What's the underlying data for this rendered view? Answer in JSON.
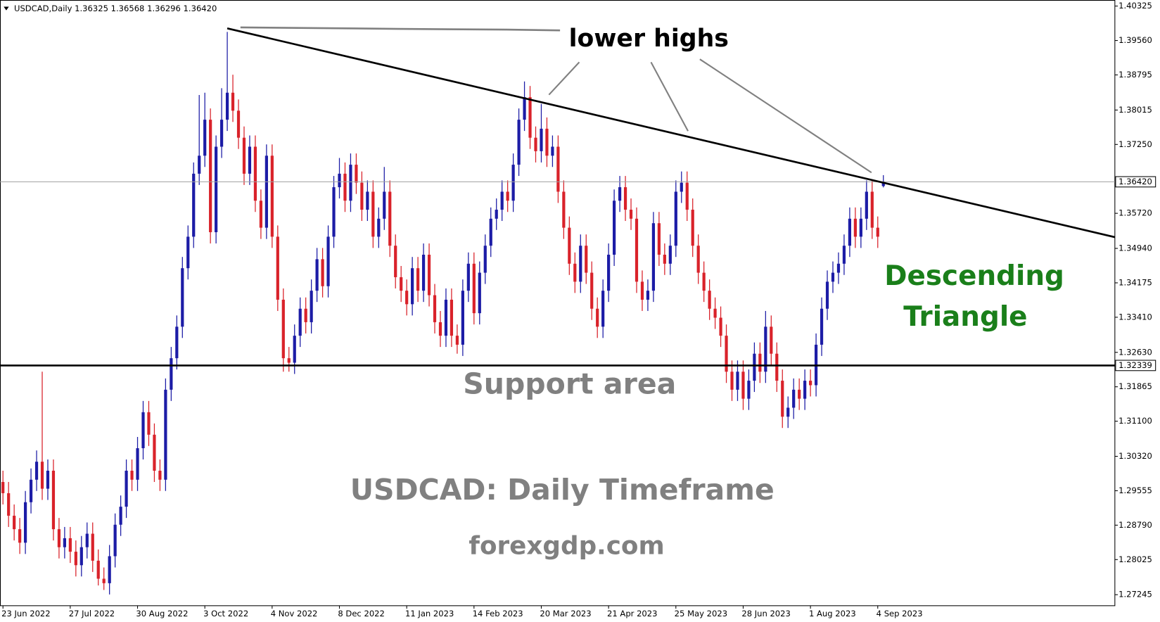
{
  "chart_data": {
    "type": "candlestick",
    "header": "USDCAD,Daily  1.36325 1.36568 1.36296 1.36420",
    "title": "USDCAD: Daily Timeframe",
    "source": "forexgdp.com",
    "annotations": {
      "lower_highs": "lower highs",
      "pattern": [
        "Descending",
        "Triangle"
      ],
      "support": "Support area"
    },
    "up_color": "#1c1ca6",
    "down_color": "#d9222a",
    "pattern_color": "#1a7f1a",
    "annotation_color": "#808080",
    "ylim": [
      1.27,
      1.4046
    ],
    "yticks": [
      1.40325,
      {
        "value": 1.3956,
        "label": "1.39560"
      },
      1.38795,
      1.38015,
      {
        "value": 1.3725,
        "label": "1.37250"
      },
      {
        "value": 1.3572,
        "label": "1.35720"
      },
      {
        "value": 1.3494,
        "label": "1.34940"
      },
      1.34175,
      {
        "value": 1.3341,
        "label": "1.33410"
      },
      {
        "value": 1.3263,
        "label": "1.32630"
      },
      1.31865,
      {
        "value": 1.311,
        "label": "1.31100"
      },
      {
        "value": 1.3032,
        "label": "1.30320"
      },
      1.29555,
      {
        "value": 1.2879,
        "label": "1.28790"
      },
      1.28025,
      1.27245
    ],
    "last_price": {
      "value": 1.3642,
      "label": "1.36420"
    },
    "support_level": 1.32339,
    "trendline": [
      1.3983,
      1.3519
    ],
    "categories": [
      "23 Jun 2022",
      null,
      null,
      null,
      null,
      null,
      null,
      null,
      null,
      null,
      null,
      null,
      "27 Jul 2022",
      null,
      null,
      null,
      null,
      null,
      null,
      null,
      null,
      null,
      null,
      null,
      "30 Aug 2022",
      null,
      null,
      null,
      null,
      null,
      null,
      null,
      null,
      null,
      null,
      null,
      "3 Oct 2022",
      null,
      null,
      null,
      null,
      null,
      null,
      null,
      null,
      null,
      null,
      null,
      "4 Nov 2022",
      null,
      null,
      null,
      null,
      null,
      null,
      null,
      null,
      null,
      null,
      null,
      "8 Dec 2022",
      null,
      null,
      null,
      null,
      null,
      null,
      null,
      null,
      null,
      null,
      null,
      "11 Jan 2023",
      null,
      null,
      null,
      null,
      null,
      null,
      null,
      null,
      null,
      null,
      null,
      "14 Feb 2023",
      null,
      null,
      null,
      null,
      null,
      null,
      null,
      null,
      null,
      null,
      null,
      "20 Mar 2023",
      null,
      null,
      null,
      null,
      null,
      null,
      null,
      null,
      null,
      null,
      null,
      "21 Apr 2023",
      null,
      null,
      null,
      null,
      null,
      null,
      null,
      null,
      null,
      null,
      null,
      "25 May 2023",
      null,
      null,
      null,
      null,
      null,
      null,
      null,
      null,
      null,
      null,
      null,
      "28 Jun 2023",
      null,
      null,
      null,
      null,
      null,
      null,
      null,
      null,
      null,
      null,
      null,
      "1 Aug 2023",
      null,
      null,
      null,
      null,
      null,
      null,
      null,
      null,
      null,
      null,
      null,
      "4 Sep 2023",
      null
    ],
    "candles": [
      [
        1.2975,
        1.3,
        1.2925,
        1.295
      ],
      [
        1.295,
        1.2975,
        1.2875,
        1.29
      ],
      [
        1.29,
        1.2925,
        1.2845,
        1.287
      ],
      [
        1.287,
        1.2895,
        1.2815,
        1.284
      ],
      [
        1.284,
        1.2955,
        1.2815,
        1.293
      ],
      [
        1.293,
        1.3005,
        1.2905,
        1.298
      ],
      [
        1.298,
        1.3045,
        1.2955,
        1.302
      ],
      [
        1.302,
        1.322,
        1.2935,
        1.296
      ],
      [
        1.296,
        1.3025,
        1.2935,
        1.3
      ],
      [
        1.3,
        1.3025,
        1.2845,
        1.287
      ],
      [
        1.287,
        1.2895,
        1.2805,
        1.283
      ],
      [
        1.283,
        1.2875,
        1.2805,
        1.285
      ],
      [
        1.285,
        1.2875,
        1.2795,
        1.282
      ],
      [
        1.282,
        1.2845,
        1.2765,
        1.279
      ],
      [
        1.279,
        1.2855,
        1.2765,
        1.283
      ],
      [
        1.283,
        1.2885,
        1.2805,
        1.286
      ],
      [
        1.286,
        1.2885,
        1.2775,
        1.28
      ],
      [
        1.28,
        1.2825,
        1.2745,
        1.276
      ],
      [
        1.276,
        1.2785,
        1.2735,
        1.275
      ],
      [
        1.275,
        1.2835,
        1.2725,
        1.281
      ],
      [
        1.281,
        1.2905,
        1.2785,
        1.288
      ],
      [
        1.288,
        1.2945,
        1.2855,
        1.292
      ],
      [
        1.292,
        1.3025,
        1.2895,
        1.3
      ],
      [
        1.3,
        1.3025,
        1.2955,
        1.298
      ],
      [
        1.298,
        1.3075,
        1.2955,
        1.305
      ],
      [
        1.305,
        1.3155,
        1.3025,
        1.313
      ],
      [
        1.313,
        1.3155,
        1.3055,
        1.308
      ],
      [
        1.308,
        1.3105,
        1.2975,
        1.3
      ],
      [
        1.3,
        1.3025,
        1.2955,
        1.298
      ],
      [
        1.298,
        1.3205,
        1.2955,
        1.318
      ],
      [
        1.318,
        1.3275,
        1.3155,
        1.325
      ],
      [
        1.325,
        1.3345,
        1.3225,
        1.332
      ],
      [
        1.332,
        1.3475,
        1.3295,
        1.345
      ],
      [
        1.345,
        1.3545,
        1.3425,
        1.352
      ],
      [
        1.352,
        1.3685,
        1.3495,
        1.366
      ],
      [
        1.366,
        1.3835,
        1.3635,
        1.37
      ],
      [
        1.37,
        1.384,
        1.3675,
        1.378
      ],
      [
        1.378,
        1.3805,
        1.3505,
        1.353
      ],
      [
        1.353,
        1.3745,
        1.3505,
        1.372
      ],
      [
        1.372,
        1.385,
        1.3695,
        1.378
      ],
      [
        1.378,
        1.3975,
        1.3755,
        1.384
      ],
      [
        1.384,
        1.388,
        1.3775,
        1.38
      ],
      [
        1.38,
        1.3825,
        1.3715,
        1.374
      ],
      [
        1.374,
        1.3765,
        1.3635,
        1.366
      ],
      [
        1.366,
        1.3745,
        1.3635,
        1.372
      ],
      [
        1.372,
        1.3745,
        1.3575,
        1.36
      ],
      [
        1.36,
        1.3625,
        1.3515,
        1.354
      ],
      [
        1.354,
        1.3725,
        1.3515,
        1.37
      ],
      [
        1.37,
        1.3725,
        1.3495,
        1.352
      ],
      [
        1.352,
        1.3545,
        1.3355,
        1.338
      ],
      [
        1.338,
        1.3405,
        1.322,
        1.325
      ],
      [
        1.325,
        1.3275,
        1.322,
        1.324
      ],
      [
        1.324,
        1.3325,
        1.3215,
        1.33
      ],
      [
        1.33,
        1.3385,
        1.3275,
        1.336
      ],
      [
        1.336,
        1.3385,
        1.3305,
        1.333
      ],
      [
        1.333,
        1.3425,
        1.3305,
        1.34
      ],
      [
        1.34,
        1.3495,
        1.3375,
        1.347
      ],
      [
        1.347,
        1.3495,
        1.3385,
        1.341
      ],
      [
        1.341,
        1.3545,
        1.3385,
        1.352
      ],
      [
        1.352,
        1.3655,
        1.3495,
        1.363
      ],
      [
        1.363,
        1.3695,
        1.3605,
        1.366
      ],
      [
        1.366,
        1.3685,
        1.3575,
        1.36
      ],
      [
        1.36,
        1.3705,
        1.3575,
        1.368
      ],
      [
        1.368,
        1.3705,
        1.3615,
        1.364
      ],
      [
        1.364,
        1.3665,
        1.3555,
        1.358
      ],
      [
        1.358,
        1.3645,
        1.3555,
        1.362
      ],
      [
        1.362,
        1.3645,
        1.3495,
        1.352
      ],
      [
        1.352,
        1.3585,
        1.3495,
        1.356
      ],
      [
        1.356,
        1.3675,
        1.3535,
        1.362
      ],
      [
        1.362,
        1.3645,
        1.3475,
        1.35
      ],
      [
        1.35,
        1.3525,
        1.3405,
        1.343
      ],
      [
        1.343,
        1.3455,
        1.3375,
        1.34
      ],
      [
        1.34,
        1.3425,
        1.3345,
        1.337
      ],
      [
        1.337,
        1.3475,
        1.3345,
        1.345
      ],
      [
        1.345,
        1.3475,
        1.3375,
        1.34
      ],
      [
        1.34,
        1.3505,
        1.3375,
        1.348
      ],
      [
        1.348,
        1.3505,
        1.3365,
        1.339
      ],
      [
        1.339,
        1.3415,
        1.3305,
        1.333
      ],
      [
        1.333,
        1.3355,
        1.3275,
        1.33
      ],
      [
        1.33,
        1.3405,
        1.3275,
        1.338
      ],
      [
        1.338,
        1.3405,
        1.3275,
        1.33
      ],
      [
        1.33,
        1.3325,
        1.326,
        1.328
      ],
      [
        1.328,
        1.3425,
        1.3255,
        1.34
      ],
      [
        1.34,
        1.3485,
        1.3375,
        1.346
      ],
      [
        1.346,
        1.3485,
        1.3325,
        1.335
      ],
      [
        1.335,
        1.3465,
        1.3325,
        1.344
      ],
      [
        1.344,
        1.3525,
        1.3415,
        1.35
      ],
      [
        1.35,
        1.3585,
        1.3475,
        1.356
      ],
      [
        1.356,
        1.3605,
        1.3535,
        1.358
      ],
      [
        1.358,
        1.3645,
        1.3555,
        1.362
      ],
      [
        1.362,
        1.3645,
        1.3575,
        1.36
      ],
      [
        1.36,
        1.3705,
        1.3575,
        1.368
      ],
      [
        1.368,
        1.3805,
        1.3655,
        1.378
      ],
      [
        1.378,
        1.3865,
        1.3755,
        1.383
      ],
      [
        1.383,
        1.3855,
        1.3715,
        1.374
      ],
      [
        1.374,
        1.3765,
        1.3685,
        1.371
      ],
      [
        1.371,
        1.3815,
        1.3685,
        1.376
      ],
      [
        1.376,
        1.3785,
        1.3675,
        1.37
      ],
      [
        1.37,
        1.3745,
        1.3675,
        1.372
      ],
      [
        1.372,
        1.3745,
        1.3595,
        1.362
      ],
      [
        1.362,
        1.3645,
        1.3515,
        1.354
      ],
      [
        1.354,
        1.3565,
        1.3435,
        1.346
      ],
      [
        1.346,
        1.3485,
        1.3395,
        1.342
      ],
      [
        1.342,
        1.3525,
        1.3395,
        1.35
      ],
      [
        1.35,
        1.3525,
        1.3415,
        1.344
      ],
      [
        1.344,
        1.3465,
        1.3335,
        1.336
      ],
      [
        1.336,
        1.3385,
        1.3295,
        1.332
      ],
      [
        1.332,
        1.3425,
        1.3295,
        1.34
      ],
      [
        1.34,
        1.3505,
        1.3375,
        1.348
      ],
      [
        1.348,
        1.3625,
        1.3455,
        1.36
      ],
      [
        1.36,
        1.3655,
        1.3575,
        1.363
      ],
      [
        1.363,
        1.3655,
        1.3555,
        1.358
      ],
      [
        1.358,
        1.3605,
        1.3535,
        1.356
      ],
      [
        1.356,
        1.3585,
        1.3395,
        1.342
      ],
      [
        1.342,
        1.3445,
        1.3355,
        1.338
      ],
      [
        1.338,
        1.3425,
        1.3355,
        1.34
      ],
      [
        1.34,
        1.3575,
        1.3375,
        1.355
      ],
      [
        1.355,
        1.3575,
        1.3455,
        1.348
      ],
      [
        1.348,
        1.3505,
        1.3435,
        1.346
      ],
      [
        1.346,
        1.3525,
        1.3435,
        1.35
      ],
      [
        1.35,
        1.3645,
        1.3475,
        1.362
      ],
      [
        1.362,
        1.3665,
        1.3595,
        1.364
      ],
      [
        1.364,
        1.3665,
        1.3555,
        1.358
      ],
      [
        1.358,
        1.3605,
        1.3475,
        1.35
      ],
      [
        1.35,
        1.3525,
        1.3415,
        1.344
      ],
      [
        1.344,
        1.3465,
        1.3375,
        1.34
      ],
      [
        1.34,
        1.3425,
        1.3335,
        1.336
      ],
      [
        1.336,
        1.3385,
        1.3315,
        1.334
      ],
      [
        1.334,
        1.3365,
        1.3275,
        1.33
      ],
      [
        1.33,
        1.3325,
        1.3195,
        1.322
      ],
      [
        1.322,
        1.3245,
        1.3155,
        1.318
      ],
      [
        1.318,
        1.3245,
        1.3155,
        1.322
      ],
      [
        1.322,
        1.3245,
        1.3135,
        1.316
      ],
      [
        1.316,
        1.3225,
        1.3135,
        1.32
      ],
      [
        1.32,
        1.3285,
        1.3175,
        1.326
      ],
      [
        1.326,
        1.3285,
        1.3195,
        1.322
      ],
      [
        1.322,
        1.3355,
        1.3195,
        1.332
      ],
      [
        1.332,
        1.3345,
        1.3235,
        1.326
      ],
      [
        1.326,
        1.3285,
        1.3175,
        1.32
      ],
      [
        1.32,
        1.3225,
        1.3095,
        1.312
      ],
      [
        1.312,
        1.3165,
        1.3095,
        1.314
      ],
      [
        1.314,
        1.3205,
        1.3115,
        1.318
      ],
      [
        1.318,
        1.3205,
        1.3135,
        1.316
      ],
      [
        1.316,
        1.3225,
        1.3135,
        1.32
      ],
      [
        1.32,
        1.3225,
        1.3165,
        1.319
      ],
      [
        1.319,
        1.3305,
        1.3165,
        1.328
      ],
      [
        1.328,
        1.3385,
        1.3255,
        1.336
      ],
      [
        1.336,
        1.3445,
        1.3335,
        1.342
      ],
      [
        1.342,
        1.3465,
        1.3395,
        1.344
      ],
      [
        1.344,
        1.3485,
        1.3415,
        1.346
      ],
      [
        1.346,
        1.3525,
        1.3435,
        1.35
      ],
      [
        1.35,
        1.3585,
        1.3475,
        1.356
      ],
      [
        1.356,
        1.3585,
        1.3495,
        1.352
      ],
      [
        1.352,
        1.3585,
        1.3495,
        1.356
      ],
      [
        1.356,
        1.3645,
        1.3535,
        1.362
      ],
      [
        1.362,
        1.3645,
        1.3515,
        1.354
      ],
      [
        1.354,
        1.3565,
        1.3495,
        1.352
      ],
      [
        1.36325,
        1.36568,
        1.36296,
        1.3642
      ]
    ]
  }
}
